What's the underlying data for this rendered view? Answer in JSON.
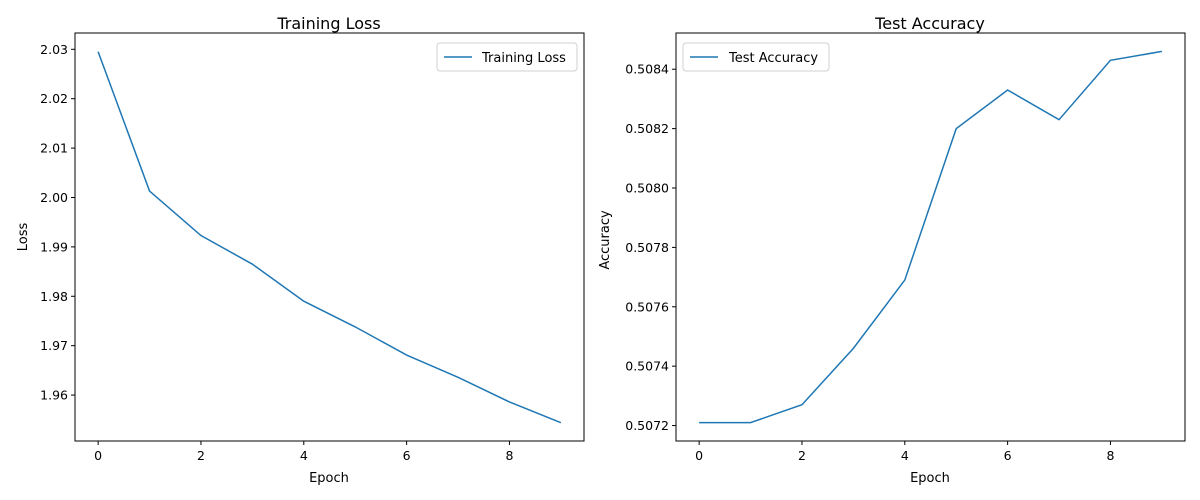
{
  "chart_data": [
    {
      "type": "line",
      "title": "Training Loss",
      "xlabel": "Epoch",
      "ylabel": "Loss",
      "x": [
        0,
        1,
        2,
        3,
        4,
        5,
        6,
        7,
        8,
        9
      ],
      "series": [
        {
          "name": "Training Loss",
          "values": [
            2.0295,
            2.0013,
            1.9923,
            1.9865,
            1.979,
            1.9738,
            1.9681,
            1.9636,
            1.9586,
            1.9544
          ]
        }
      ],
      "xlim": [
        -0.45,
        9.45
      ],
      "ylim": [
        1.9507,
        2.0333
      ],
      "xticks": [
        0,
        2,
        4,
        6,
        8
      ],
      "xtick_labels": [
        "0",
        "2",
        "4",
        "6",
        "8"
      ],
      "yticks": [
        1.96,
        1.97,
        1.98,
        1.99,
        2.0,
        2.01,
        2.02,
        2.03
      ],
      "ytick_labels": [
        "1.96",
        "1.97",
        "1.98",
        "1.99",
        "2.00",
        "2.01",
        "2.02",
        "2.03"
      ],
      "legend": "upper right",
      "grid": false,
      "color": "#1f77b4"
    },
    {
      "type": "line",
      "title": "Test Accuracy",
      "xlabel": "Epoch",
      "ylabel": "Accuracy",
      "x": [
        0,
        1,
        2,
        3,
        4,
        5,
        6,
        7,
        8,
        9
      ],
      "series": [
        {
          "name": "Test Accuracy",
          "values": [
            0.50721,
            0.50721,
            0.50727,
            0.50746,
            0.50769,
            0.5082,
            0.50833,
            0.50823,
            0.50843,
            0.50846
          ]
        }
      ],
      "xlim": [
        -0.45,
        9.45
      ],
      "ylim": [
        0.507148,
        0.508522
      ],
      "xticks": [
        0,
        2,
        4,
        6,
        8
      ],
      "xtick_labels": [
        "0",
        "2",
        "4",
        "6",
        "8"
      ],
      "yticks": [
        0.5072,
        0.5074,
        0.5076,
        0.5078,
        0.508,
        0.5082,
        0.5084
      ],
      "ytick_labels": [
        "0.5072",
        "0.5074",
        "0.5076",
        "0.5078",
        "0.5080",
        "0.5082",
        "0.5084"
      ],
      "legend": "upper left",
      "grid": false,
      "color": "#1f77b4"
    }
  ]
}
